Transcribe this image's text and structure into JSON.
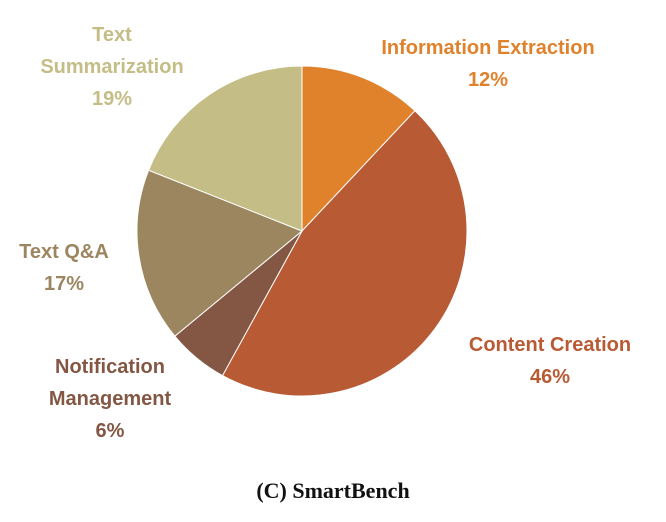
{
  "chart_data": {
    "type": "pie",
    "slices": [
      {
        "name_lines": [
          "Information Extraction"
        ],
        "value": 12,
        "pct_label": "12%",
        "color": "#E0822C"
      },
      {
        "name_lines": [
          "Content Creation"
        ],
        "value": 46,
        "pct_label": "46%",
        "color": "#B85A34"
      },
      {
        "name_lines": [
          "Notification",
          "Management"
        ],
        "value": 6,
        "pct_label": "6%",
        "color": "#835744"
      },
      {
        "name_lines": [
          "Text Q&A"
        ],
        "value": 17,
        "pct_label": "17%",
        "color": "#9C8660"
      },
      {
        "name_lines": [
          "Text",
          "Summarization"
        ],
        "value": 19,
        "pct_label": "19%",
        "color": "#C4BD86"
      }
    ],
    "start": "12 o'clock",
    "direction": "clockwise",
    "legend": "none"
  },
  "caption": "(C) SmartBench"
}
